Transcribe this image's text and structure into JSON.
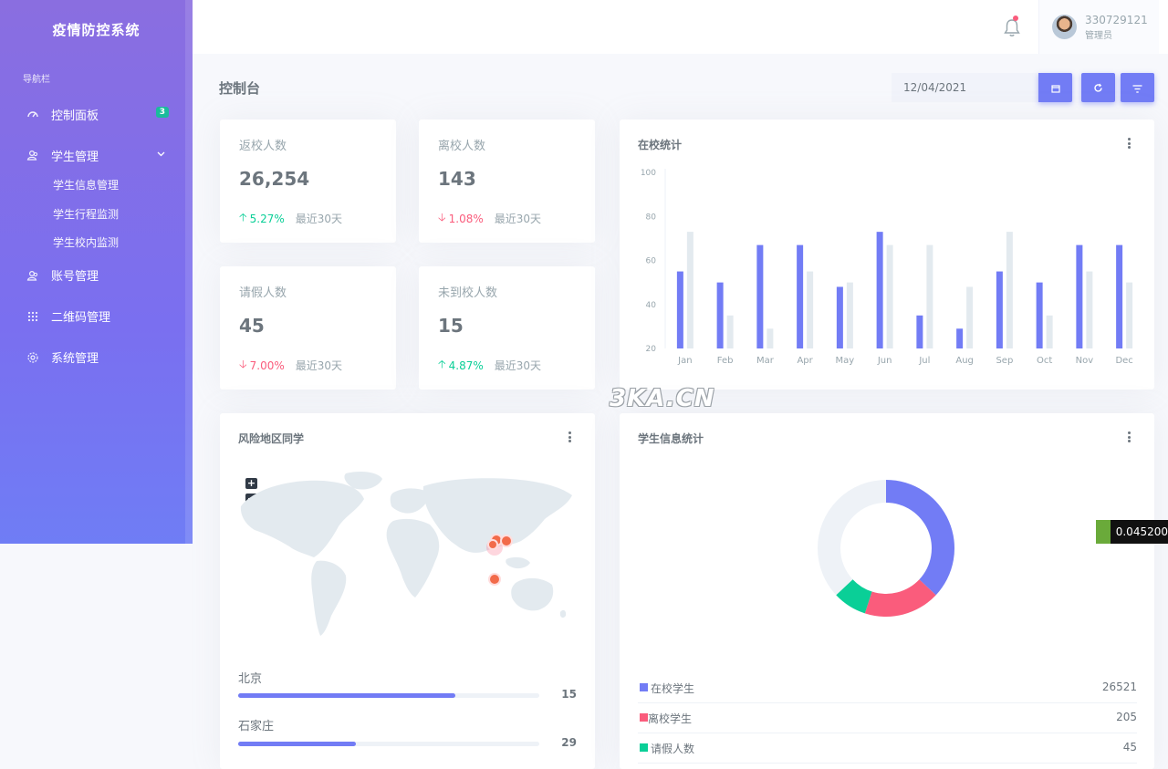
{
  "brand": "疫情防控系统",
  "nav_label": "导航栏",
  "nav": {
    "dashboard": {
      "label": "控制面板",
      "badge": "3"
    },
    "students": {
      "label": "学生管理",
      "children": [
        "学生信息管理",
        "学生行程监测",
        "学生校内监测"
      ]
    },
    "accounts": {
      "label": "账号管理"
    },
    "qrcode": {
      "label": "二维码管理"
    },
    "system": {
      "label": "系统管理"
    }
  },
  "user": {
    "name": "330729121",
    "role": "管理员"
  },
  "page_title": "控制台",
  "date_value": "12/04/2021",
  "stats": [
    {
      "label": "返校人数",
      "value": "26,254",
      "change": "5.27%",
      "direction": "up",
      "since": "最近30天"
    },
    {
      "label": "离校人数",
      "value": "143",
      "change": "1.08%",
      "direction": "down",
      "since": "最近30天"
    },
    {
      "label": "请假人数",
      "value": "45",
      "change": "7.00%",
      "direction": "down",
      "since": "最近30天"
    },
    {
      "label": "未到校人数",
      "value": "15",
      "change": "4.87%",
      "direction": "up",
      "since": "最近30天"
    }
  ],
  "bar_card_title": "在校统计",
  "map_card_title": "风险地区同学",
  "donut_card_title": "学生信息统计",
  "map_zoom": {
    "in": "+",
    "out": "−"
  },
  "regions": [
    {
      "name": "北京",
      "value": "15",
      "fraction": 0.72
    },
    {
      "name": "石家庄",
      "value": "29",
      "fraction": 0.39
    }
  ],
  "chart_data": [
    {
      "type": "bar",
      "categories": [
        "Jan",
        "Feb",
        "Mar",
        "Apr",
        "May",
        "Jun",
        "Jul",
        "Aug",
        "Sep",
        "Oct",
        "Nov",
        "Dec"
      ],
      "series": [
        {
          "values": [
            55,
            50,
            67,
            67,
            48,
            73,
            35,
            29,
            55,
            50,
            67,
            67
          ],
          "color": "#727cf5"
        },
        {
          "values": [
            73,
            35,
            29,
            55,
            50,
            67,
            67,
            48,
            73,
            35,
            55,
            50
          ],
          "color": "#e3eaef"
        }
      ],
      "ylim": [
        20,
        100
      ],
      "yticks": [
        100,
        80,
        60,
        40,
        20
      ],
      "grid": false
    },
    {
      "type": "pie",
      "labels": [
        "在校学生",
        "离校学生",
        "请假人数"
      ],
      "values": [
        26521,
        205,
        45
      ],
      "display_values": [
        "26521",
        "205",
        "45"
      ],
      "colors": [
        "#727cf5",
        "#fa5c7c",
        "#0acf97"
      ]
    }
  ],
  "watermark": "3KA.CN",
  "float_widget_text": "0.045200"
}
